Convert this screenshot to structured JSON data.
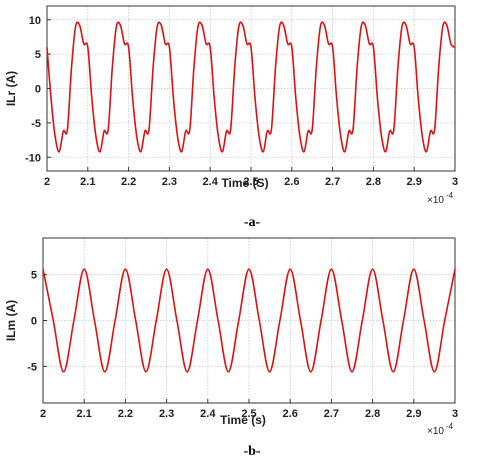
{
  "chart_data": [
    {
      "type": "line",
      "panel_label": "-a-",
      "xlabel": "Time (S)",
      "ylabel": "ILr (A)",
      "x_multiplier": "×10",
      "x_exponent": "-4",
      "xlim": [
        2,
        3
      ],
      "ylim": [
        -12,
        12
      ],
      "xticks": [
        "2",
        "2.1",
        "2.2",
        "2.3",
        "2.4",
        "2.5",
        "2.6",
        "2.7",
        "2.8",
        "2.9",
        "3"
      ],
      "yticks": [
        "-10",
        "-5",
        "0",
        "5",
        "10"
      ],
      "grid": true,
      "series": [
        {
          "color": "#e01010",
          "period": 0.1,
          "x": [
            2.0,
            2.01,
            2.02,
            2.03,
            2.04,
            2.05,
            2.06,
            2.07,
            2.08,
            2.09,
            2.1
          ],
          "y": [
            6.0,
            -1.5,
            -7.0,
            -9.2,
            -6.2,
            -6.0,
            3.0,
            9.0,
            9.2,
            6.5,
            6.0
          ]
        }
      ]
    },
    {
      "type": "line",
      "panel_label": "-b-",
      "xlabel": "Time (s)",
      "ylabel": "ILm (A)",
      "x_multiplier": "×10",
      "x_exponent": "-4",
      "xlim": [
        2,
        3
      ],
      "ylim": [
        -9,
        9
      ],
      "xticks": [
        "2",
        "2.1",
        "2.2",
        "2.3",
        "2.4",
        "2.5",
        "2.6",
        "2.7",
        "2.8",
        "2.9",
        "3"
      ],
      "yticks": [
        "-5",
        "0",
        "5"
      ],
      "grid": true,
      "series": [
        {
          "color": "#e01010",
          "period": 0.1,
          "x": [
            2.0,
            2.025,
            2.05,
            2.075,
            2.1
          ],
          "y": [
            5.6,
            0.0,
            -5.6,
            0.0,
            5.6
          ]
        }
      ]
    }
  ]
}
